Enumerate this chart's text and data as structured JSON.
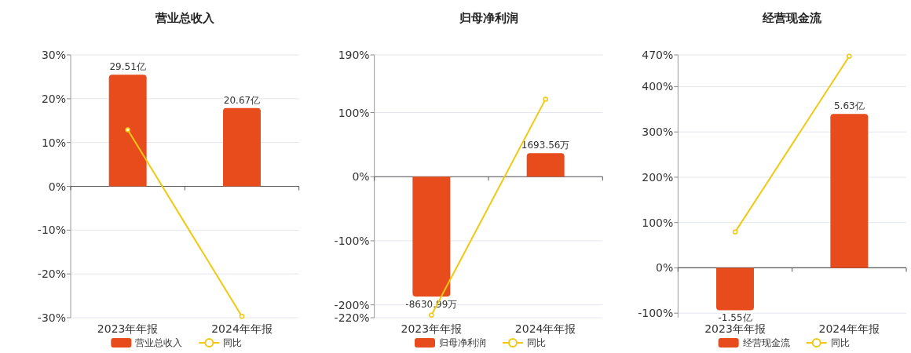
{
  "chart_data": [
    {
      "type": "bar",
      "title": "营业总收入",
      "categories": [
        "2023年年报",
        "2024年年报"
      ],
      "ylim": [
        -30,
        30
      ],
      "yticks": [
        {
          "value": -30,
          "label": "-30%"
        },
        {
          "value": -20,
          "label": "-20%"
        },
        {
          "value": -10,
          "label": "-10%"
        },
        {
          "value": 0,
          "label": "0%"
        },
        {
          "value": 10,
          "label": "10%"
        },
        {
          "value": 20,
          "label": "20%"
        },
        {
          "value": 30,
          "label": "30%"
        }
      ],
      "grid": "y",
      "legend": "bottom",
      "series": [
        {
          "name": "营业总收入",
          "axis": "y2",
          "color": "#e84c1c",
          "values": [
            29.51,
            20.67
          ],
          "value_labels": [
            "29.51亿",
            "20.67亿"
          ]
        },
        {
          "name": "同比",
          "type": "line",
          "color": "#f2c811",
          "marker": "circle",
          "values": [
            12.9,
            -29.7
          ]
        }
      ]
    },
    {
      "type": "bar",
      "title": "归母净利润",
      "categories": [
        "2023年年报",
        "2024年年报"
      ],
      "ylim": [
        -220,
        190
      ],
      "yticks": [
        {
          "value": -220,
          "label": "-220%"
        },
        {
          "value": -200,
          "label": "-200%"
        },
        {
          "value": -100,
          "label": "-100%"
        },
        {
          "value": 0,
          "label": "0%"
        },
        {
          "value": 100,
          "label": "100%"
        },
        {
          "value": 190,
          "label": "190%"
        }
      ],
      "grid": "y",
      "legend": "bottom",
      "series": [
        {
          "name": "归母净利润",
          "axis": "y2",
          "color": "#e84c1c",
          "values": [
            -8630.99,
            1693.56
          ],
          "value_labels": [
            "-8630.99万",
            "1693.56万"
          ]
        },
        {
          "name": "同比",
          "type": "line",
          "color": "#f2c811",
          "marker": "circle",
          "values": [
            -216,
            121
          ]
        }
      ]
    },
    {
      "type": "bar",
      "title": "经营现金流",
      "categories": [
        "2023年年报",
        "2024年年报"
      ],
      "ylim": [
        -110,
        470
      ],
      "yticks": [
        {
          "value": -100,
          "label": "-100%"
        },
        {
          "value": 0,
          "label": "0%"
        },
        {
          "value": 100,
          "label": "100%"
        },
        {
          "value": 200,
          "label": "200%"
        },
        {
          "value": 300,
          "label": "300%"
        },
        {
          "value": 400,
          "label": "400%"
        },
        {
          "value": 470,
          "label": "470%"
        }
      ],
      "grid": "y",
      "legend": "bottom",
      "series": [
        {
          "name": "经营现金流",
          "axis": "y2",
          "color": "#e84c1c",
          "values": [
            -1.55,
            5.63
          ],
          "value_labels": [
            "-1.55亿",
            "5.63亿"
          ]
        },
        {
          "name": "同比",
          "type": "line",
          "color": "#f2c811",
          "marker": "circle",
          "values": [
            79,
            467
          ]
        }
      ]
    }
  ]
}
